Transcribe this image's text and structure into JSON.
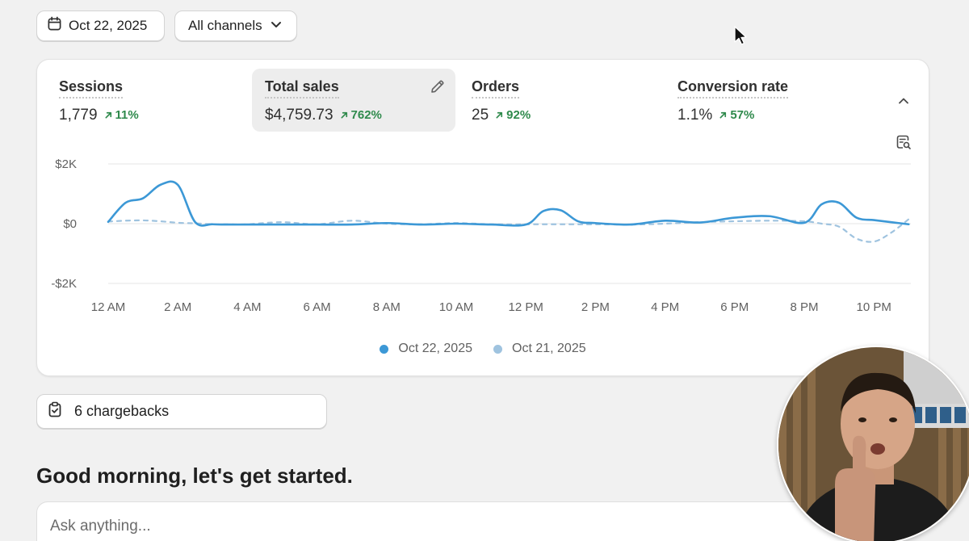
{
  "toolbar": {
    "date": "Oct 22, 2025",
    "channels": "All channels"
  },
  "metrics": [
    {
      "label": "Sessions",
      "value": "1,779",
      "delta": "11%"
    },
    {
      "label": "Total sales",
      "value": "$4,759.73",
      "delta": "762%"
    },
    {
      "label": "Orders",
      "value": "25",
      "delta": "92%"
    },
    {
      "label": "Conversion rate",
      "value": "1.1%",
      "delta": "57%"
    }
  ],
  "chart_data": {
    "type": "line",
    "y_ticks": [
      "$2K",
      "$0",
      "-$2K"
    ],
    "ylim": [
      -2000,
      2000
    ],
    "x_ticks": [
      "12 AM",
      "2 AM",
      "4 AM",
      "6 AM",
      "8 AM",
      "10 AM",
      "12 PM",
      "2 PM",
      "4 PM",
      "6 PM",
      "8 PM",
      "10 PM"
    ],
    "x_hours": [
      0,
      0.5,
      1,
      1.5,
      2,
      2.5,
      3,
      3.5,
      4,
      5,
      6,
      7,
      8,
      9,
      10,
      11,
      12,
      12.5,
      13,
      13.5,
      14,
      15,
      16,
      17,
      18,
      19,
      20,
      20.5,
      21,
      21.5,
      22,
      22.5,
      23
    ],
    "series": [
      {
        "name": "Oct 22, 2025",
        "color": "#3c98d6",
        "values": [
          60,
          700,
          850,
          1300,
          1300,
          50,
          -20,
          -30,
          -30,
          -30,
          -30,
          -30,
          20,
          -30,
          0,
          -30,
          -30,
          420,
          450,
          80,
          20,
          -30,
          100,
          40,
          200,
          250,
          30,
          650,
          700,
          200,
          120,
          50,
          -20
        ]
      },
      {
        "name": "Oct 21, 2025",
        "color": "#9fc3df",
        "values": [
          70,
          100,
          110,
          80,
          30,
          10,
          -20,
          -20,
          -20,
          50,
          -20,
          100,
          0,
          -20,
          20,
          -20,
          -20,
          -20,
          -20,
          -20,
          -20,
          -30,
          0,
          50,
          80,
          100,
          80,
          0,
          -100,
          -500,
          -600,
          -300,
          150
        ]
      }
    ],
    "legend": [
      "Oct 22, 2025",
      "Oct 21, 2025"
    ],
    "grid": true,
    "legend_position": "bottom-center"
  },
  "chargebacks": "6 chargebacks",
  "greeting": "Good morning, let's get started.",
  "ask": {
    "placeholder": "Ask anything..."
  },
  "colors": {
    "positive": "#2f8a4c",
    "series_current": "#3c98d6",
    "series_previous": "#9fc3df"
  }
}
